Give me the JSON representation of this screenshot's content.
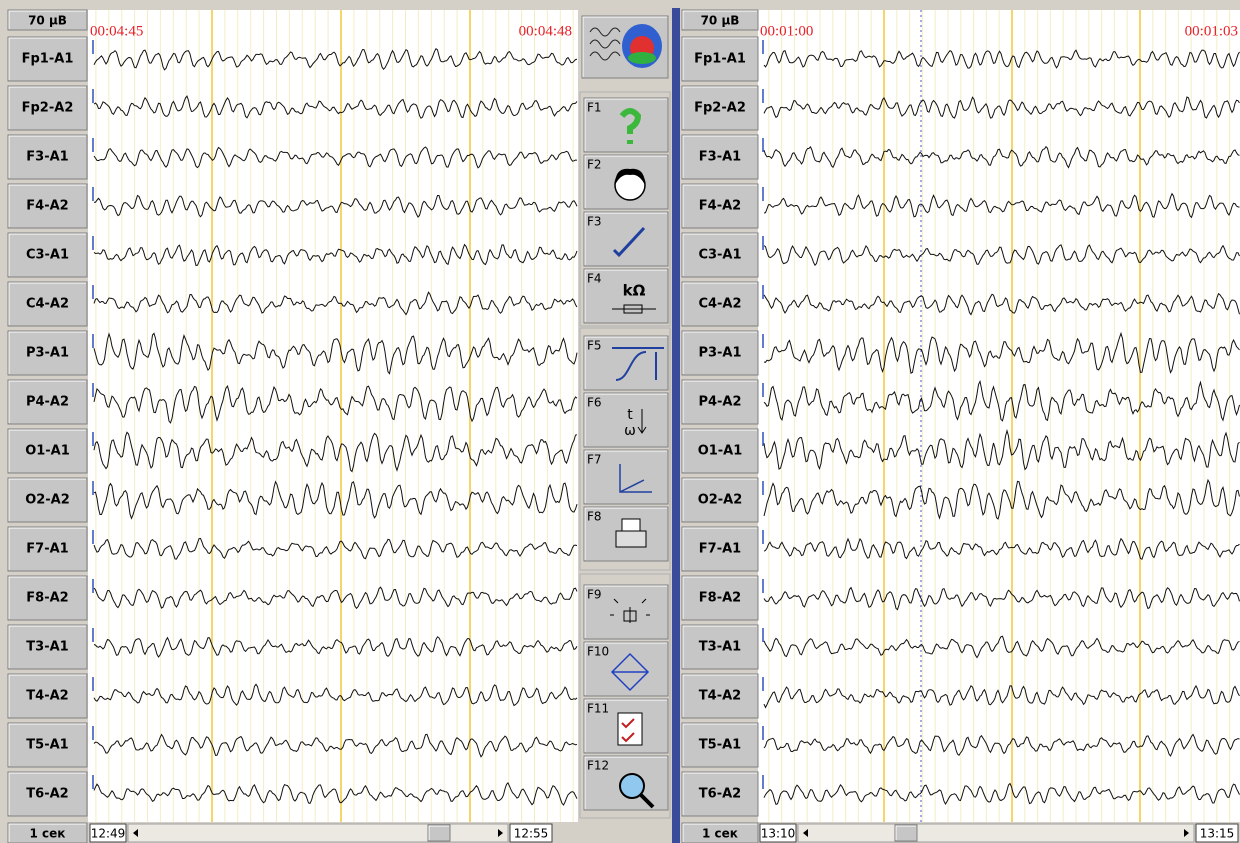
{
  "left_panel": {
    "scale": "70 µB",
    "start_time": "00:04:45",
    "end_time": "00:04:48",
    "channels": [
      "Fp1-A1",
      "Fp2-A2",
      "F3-A1",
      "F4-A2",
      "C3-A1",
      "C4-A2",
      "P3-A1",
      "P4-A2",
      "O1-A1",
      "O2-A2",
      "F7-A1",
      "F8-A2",
      "T3-A1",
      "T4-A2",
      "T5-A1",
      "T6-A2"
    ],
    "time_unit": "1 сек",
    "scroll_start": "12:49",
    "scroll_end": "12:55"
  },
  "right_panel": {
    "scale": "70 µB",
    "start_time": "00:01:00",
    "end_time": "00:01:03",
    "channels": [
      "Fp1-A1",
      "Fp2-A2",
      "F3-A1",
      "F4-A2",
      "C3-A1",
      "C4-A2",
      "P3-A1",
      "P4-A2",
      "O1-A1",
      "O2-A2",
      "F7-A1",
      "F8-A2",
      "T3-A1",
      "T4-A2",
      "T5-A1",
      "T6-A2"
    ],
    "time_unit": "1 сек",
    "scroll_start": "13:10",
    "scroll_end": "13:15"
  },
  "toolbar": {
    "keys": [
      "F1",
      "F2",
      "F3",
      "F4",
      "F5",
      "F6",
      "F7",
      "F8",
      "F9",
      "F10",
      "F11",
      "F12"
    ],
    "impedance_label": "kΩ",
    "time_label": "t",
    "frequency_label": "ω"
  }
}
